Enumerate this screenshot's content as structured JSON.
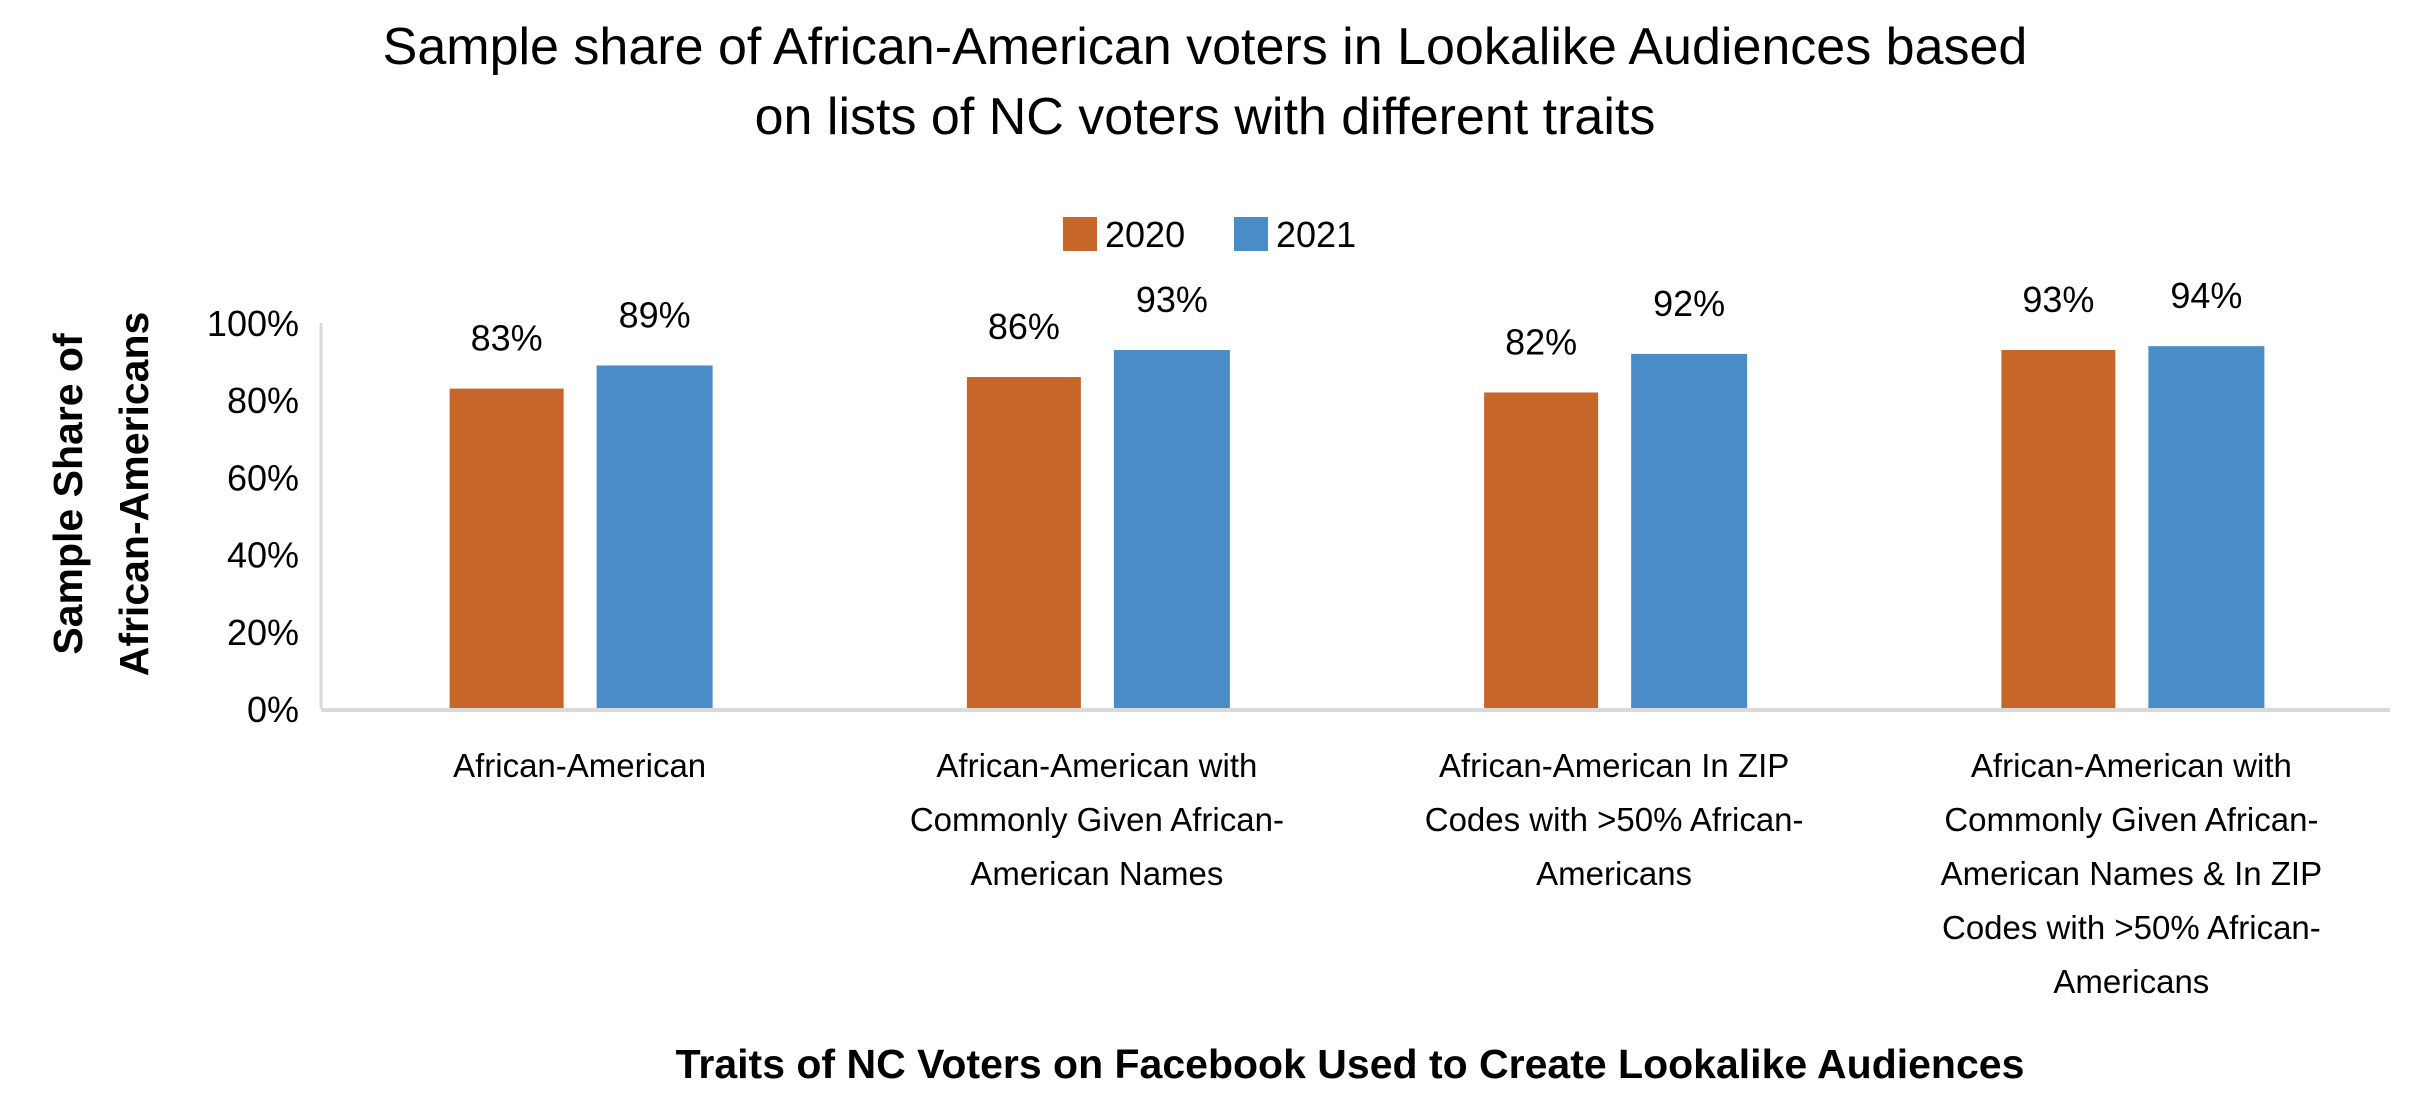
{
  "chart_data": {
    "type": "bar",
    "title": [
      "Sample share of African-American voters in Lookalike Audiences based",
      "on lists of NC voters with different traits"
    ],
    "xlabel": "Traits of NC Voters on Facebook Used to Create Lookalike Audiences",
    "ylabel": [
      "Sample Share of",
      "African-Americans"
    ],
    "categories": [
      [
        "African-American"
      ],
      [
        "African-American with",
        "Commonly Given African-",
        "American Names"
      ],
      [
        "African-American In ZIP",
        "Codes with >50% African-",
        "Americans"
      ],
      [
        "African-American with",
        "Commonly Given African-",
        "American Names & In ZIP",
        "Codes with >50% African-",
        "Americans"
      ]
    ],
    "series": [
      {
        "name": "2020",
        "color": "#C66628",
        "values": [
          83,
          86,
          82,
          93
        ],
        "labels": [
          "83%",
          "86%",
          "82%",
          "93%"
        ]
      },
      {
        "name": "2021",
        "color": "#4A8CC7",
        "values": [
          89,
          93,
          92,
          94
        ],
        "labels": [
          "89%",
          "93%",
          "92%",
          "94%"
        ]
      }
    ],
    "yticks": [
      "0%",
      "20%",
      "40%",
      "60%",
      "80%",
      "100%"
    ],
    "ylim": [
      0,
      100
    ],
    "grid": false,
    "legend": "top"
  }
}
